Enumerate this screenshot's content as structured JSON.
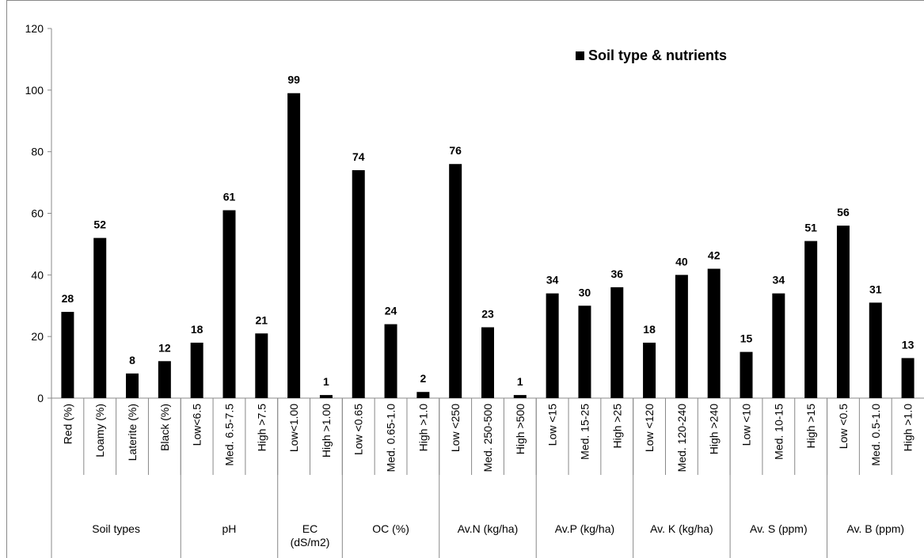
{
  "chart_data": {
    "type": "bar",
    "legend": "Soil type & nutrients",
    "categories": [
      "Red (%)",
      "Loamy (%)",
      "Laterite (%)",
      "Black (%)",
      "Low<6.5",
      "Med. 6.5-7.5",
      "High >7.5",
      "Low<1.00",
      "High >1.00",
      "Low <0.65",
      "Med. 0.65-1.0",
      "High >1.0",
      "Low <250",
      "Med. 250-500",
      "High >500",
      "Low <15",
      "Med. 15-25",
      "High >25",
      "Low <120",
      "Med. 120-240",
      "High >240",
      "Low <10",
      "Med. 10-15",
      "High >15",
      "Low <0.5",
      "Med. 0.5-1.0",
      "High >1.0"
    ],
    "groups": [
      {
        "name": "Soil types",
        "count": 4
      },
      {
        "name": "pH",
        "count": 3
      },
      {
        "name": "EC (dS/m2)",
        "count": 2
      },
      {
        "name": "OC (%)",
        "count": 3
      },
      {
        "name": "Av.N (kg/ha)",
        "count": 3
      },
      {
        "name": "Av.P (kg/ha)",
        "count": 3
      },
      {
        "name": "Av. K (kg/ha)",
        "count": 3
      },
      {
        "name": "Av. S (ppm)",
        "count": 3
      },
      {
        "name": "Av. B (ppm)",
        "count": 3
      }
    ],
    "values": [
      28,
      52,
      8,
      12,
      18,
      61,
      21,
      99,
      1,
      74,
      24,
      2,
      76,
      23,
      1,
      34,
      30,
      36,
      18,
      40,
      42,
      15,
      34,
      51,
      56,
      31,
      13
    ],
    "color": "#000000",
    "ylim": [
      0,
      120
    ],
    "yticks": [
      0,
      20,
      40,
      60,
      80,
      100,
      120
    ],
    "grid": false
  }
}
